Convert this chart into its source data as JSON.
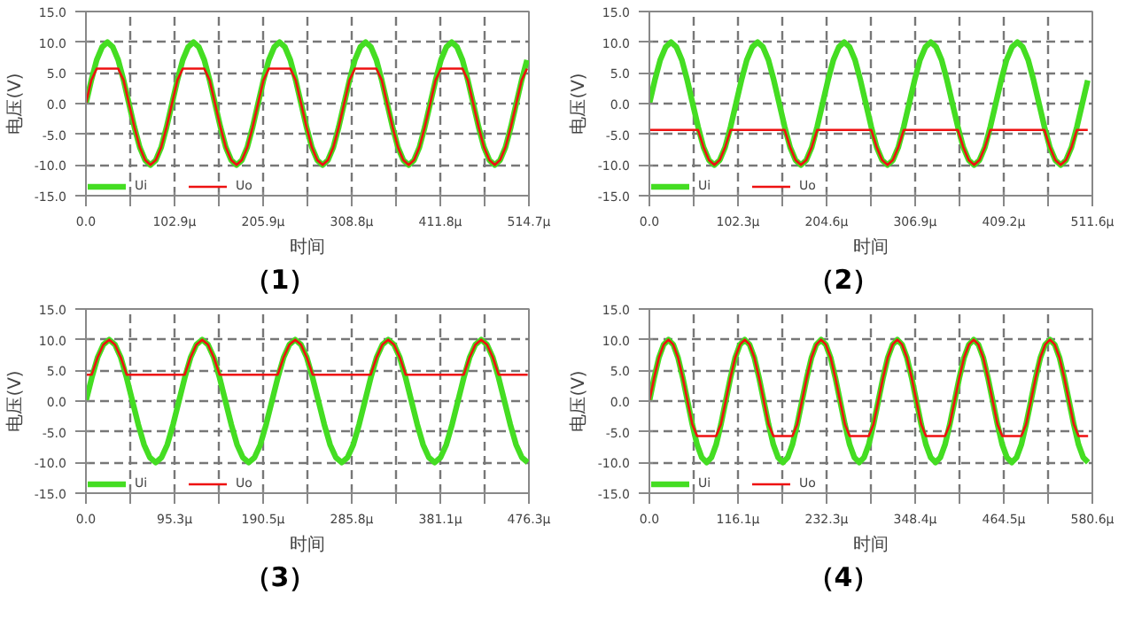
{
  "chart_data": [
    {
      "type": "line",
      "title": "（1）",
      "xlabel": "时间",
      "ylabel": "电压(V)",
      "xlim": [
        0,
        514.7
      ],
      "ylim": [
        -15,
        15
      ],
      "xticks": [
        {
          "value": 0,
          "label": "0.0"
        },
        {
          "value": 51.5,
          "label": null
        },
        {
          "value": 102.9,
          "label": "102.9μ"
        },
        {
          "value": 154.4,
          "label": null
        },
        {
          "value": 205.9,
          "label": "205.9μ"
        },
        {
          "value": 257.3,
          "label": null
        },
        {
          "value": 308.8,
          "label": "308.8μ"
        },
        {
          "value": 360.3,
          "label": null
        },
        {
          "value": 411.8,
          "label": "411.8μ"
        },
        {
          "value": 463.2,
          "label": null
        },
        {
          "value": 514.7,
          "label": "514.7μ"
        }
      ],
      "yticks": [
        {
          "value": -15,
          "label": "-15.0"
        },
        {
          "value": -10,
          "label": "-10.0"
        },
        {
          "value": -5,
          "label": "-5.0"
        },
        {
          "value": 0,
          "label": "0.0"
        },
        {
          "value": 5,
          "label": "5.0"
        },
        {
          "value": 10,
          "label": "10.0"
        },
        {
          "value": 15,
          "label": "15.0"
        }
      ],
      "grid": true,
      "legend": "bottom left",
      "x": [
        0,
        6.25,
        12.5,
        18.75,
        25,
        31.25,
        37.5,
        43.75,
        50,
        56.25,
        62.5,
        68.75,
        75,
        81.25,
        87.5,
        93.75,
        100,
        106.25,
        112.5,
        118.75,
        125,
        131.25,
        137.5,
        143.75,
        150,
        156.25,
        162.5,
        168.75,
        175,
        181.25,
        187.5,
        193.75,
        200,
        206.25,
        212.5,
        218.75,
        225,
        231.25,
        237.5,
        243.75,
        250,
        256.25,
        262.5,
        268.75,
        275,
        281.25,
        287.5,
        293.75,
        300,
        306.25,
        312.5,
        318.75,
        325,
        331.25,
        337.5,
        343.75,
        350,
        356.25,
        362.5,
        368.75,
        375,
        381.25,
        387.5,
        393.75,
        400,
        406.25,
        412.5,
        418.75,
        425,
        431.25,
        437.5,
        443.75,
        450,
        456.25,
        462.5,
        468.75,
        475,
        481.25,
        487.5,
        493.75,
        500,
        506.25,
        512.5
      ],
      "series": [
        {
          "name": "Ui",
          "color": "#44dd22",
          "values": [
            0,
            3.8,
            7.1,
            9.2,
            10,
            9.2,
            7.1,
            3.8,
            0,
            -3.8,
            -7.1,
            -9.2,
            -10,
            -9.2,
            -7.1,
            -3.8,
            0,
            3.8,
            7.1,
            9.2,
            10,
            9.2,
            7.1,
            3.8,
            0,
            -3.8,
            -7.1,
            -9.2,
            -10,
            -9.2,
            -7.1,
            -3.8,
            0,
            3.8,
            7.1,
            9.2,
            10,
            9.2,
            7.1,
            3.8,
            0,
            -3.8,
            -7.1,
            -9.2,
            -10,
            -9.2,
            -7.1,
            -3.8,
            0,
            3.8,
            7.1,
            9.2,
            10,
            9.2,
            7.1,
            3.8,
            0,
            -3.8,
            -7.1,
            -9.2,
            -10,
            -9.2,
            -7.1,
            -3.8,
            0,
            3.8,
            7.1,
            9.2,
            10,
            9.2,
            7.1,
            3.8,
            0,
            -3.8,
            -7.1,
            -9.2,
            -10,
            -9.2,
            -7.1,
            -3.8,
            0,
            3.8,
            7.1
          ]
        },
        {
          "name": "Uo",
          "color": "#ee1111",
          "values": [
            0,
            3.8,
            5.7,
            5.7,
            5.7,
            5.7,
            5.7,
            3.8,
            0,
            -3.8,
            -7.1,
            -9.2,
            -10,
            -9.2,
            -7.1,
            -3.8,
            0,
            3.8,
            5.7,
            5.7,
            5.7,
            5.7,
            5.7,
            3.8,
            0,
            -3.8,
            -7.1,
            -9.2,
            -10,
            -9.2,
            -7.1,
            -3.8,
            0,
            3.8,
            5.7,
            5.7,
            5.7,
            5.7,
            5.7,
            3.8,
            0,
            -3.8,
            -7.1,
            -9.2,
            -10,
            -9.2,
            -7.1,
            -3.8,
            0,
            3.8,
            5.7,
            5.7,
            5.7,
            5.7,
            5.7,
            3.8,
            0,
            -3.8,
            -7.1,
            -9.2,
            -10,
            -9.2,
            -7.1,
            -3.8,
            0,
            3.8,
            5.7,
            5.7,
            5.7,
            5.7,
            5.7,
            3.8,
            0,
            -3.8,
            -7.1,
            -9.2,
            -10,
            -9.2,
            -7.1,
            -3.8,
            0,
            3.8,
            5.7
          ]
        }
      ]
    },
    {
      "type": "line",
      "title": "（2）",
      "xlabel": "时间",
      "ylabel": "电压(V)",
      "xlim": [
        0,
        511.6
      ],
      "ylim": [
        -15,
        15
      ],
      "xticks": [
        {
          "value": 0,
          "label": "0.0"
        },
        {
          "value": 51.2,
          "label": null
        },
        {
          "value": 102.3,
          "label": "102.3μ"
        },
        {
          "value": 153.5,
          "label": null
        },
        {
          "value": 204.6,
          "label": "204.6μ"
        },
        {
          "value": 255.8,
          "label": null
        },
        {
          "value": 306.9,
          "label": "306.9μ"
        },
        {
          "value": 358.1,
          "label": null
        },
        {
          "value": 409.2,
          "label": "409.2μ"
        },
        {
          "value": 460.4,
          "label": null
        },
        {
          "value": 511.6,
          "label": "511.6μ"
        }
      ],
      "yticks": [
        {
          "value": -15,
          "label": "-15.0"
        },
        {
          "value": -10,
          "label": "-10.0"
        },
        {
          "value": -5,
          "label": "-5.0"
        },
        {
          "value": 0,
          "label": "0.0"
        },
        {
          "value": 5,
          "label": "5.0"
        },
        {
          "value": 10,
          "label": "10.0"
        },
        {
          "value": 15,
          "label": "15.0"
        }
      ],
      "grid": true,
      "legend": "bottom left",
      "x": [
        0,
        6.25,
        12.5,
        18.75,
        25,
        31.25,
        37.5,
        43.75,
        50,
        56.25,
        62.5,
        68.75,
        75,
        81.25,
        87.5,
        93.75,
        100,
        106.25,
        112.5,
        118.75,
        125,
        131.25,
        137.5,
        143.75,
        150,
        156.25,
        162.5,
        168.75,
        175,
        181.25,
        187.5,
        193.75,
        200,
        206.25,
        212.5,
        218.75,
        225,
        231.25,
        237.5,
        243.75,
        250,
        256.25,
        262.5,
        268.75,
        275,
        281.25,
        287.5,
        293.75,
        300,
        306.25,
        312.5,
        318.75,
        325,
        331.25,
        337.5,
        343.75,
        350,
        356.25,
        362.5,
        368.75,
        375,
        381.25,
        387.5,
        393.75,
        400,
        406.25,
        412.5,
        418.75,
        425,
        431.25,
        437.5,
        443.75,
        450,
        456.25,
        462.5,
        468.75,
        475,
        481.25,
        487.5,
        493.75,
        500,
        506.25
      ],
      "series": [
        {
          "name": "Ui",
          "color": "#44dd22",
          "values": [
            0,
            3.8,
            7.1,
            9.2,
            10,
            9.2,
            7.1,
            3.8,
            0,
            -3.8,
            -7.1,
            -9.2,
            -10,
            -9.2,
            -7.1,
            -3.8,
            0,
            3.8,
            7.1,
            9.2,
            10,
            9.2,
            7.1,
            3.8,
            0,
            -3.8,
            -7.1,
            -9.2,
            -10,
            -9.2,
            -7.1,
            -3.8,
            0,
            3.8,
            7.1,
            9.2,
            10,
            9.2,
            7.1,
            3.8,
            0,
            -3.8,
            -7.1,
            -9.2,
            -10,
            -9.2,
            -7.1,
            -3.8,
            0,
            3.8,
            7.1,
            9.2,
            10,
            9.2,
            7.1,
            3.8,
            0,
            -3.8,
            -7.1,
            -9.2,
            -10,
            -9.2,
            -7.1,
            -3.8,
            0,
            3.8,
            7.1,
            9.2,
            10,
            9.2,
            7.1,
            3.8,
            0,
            -3.8,
            -7.1,
            -9.2,
            -10,
            -9.2,
            -7.1,
            -3.8,
            0,
            3.8
          ]
        },
        {
          "name": "Uo",
          "color": "#ee1111",
          "values": [
            -4.3,
            -4.3,
            -4.3,
            -4.3,
            -4.3,
            -4.3,
            -4.3,
            -4.3,
            -4.3,
            -4.3,
            -7.1,
            -9.2,
            -10,
            -9.2,
            -7.1,
            -4.3,
            -4.3,
            -4.3,
            -4.3,
            -4.3,
            -4.3,
            -4.3,
            -4.3,
            -4.3,
            -4.3,
            -4.3,
            -7.1,
            -9.2,
            -10,
            -9.2,
            -7.1,
            -4.3,
            -4.3,
            -4.3,
            -4.3,
            -4.3,
            -4.3,
            -4.3,
            -4.3,
            -4.3,
            -4.3,
            -4.3,
            -7.1,
            -9.2,
            -10,
            -9.2,
            -7.1,
            -4.3,
            -4.3,
            -4.3,
            -4.3,
            -4.3,
            -4.3,
            -4.3,
            -4.3,
            -4.3,
            -4.3,
            -4.3,
            -7.1,
            -9.2,
            -10,
            -9.2,
            -7.1,
            -4.3,
            -4.3,
            -4.3,
            -4.3,
            -4.3,
            -4.3,
            -4.3,
            -4.3,
            -4.3,
            -4.3,
            -4.3,
            -7.1,
            -9.2,
            -10,
            -9.2,
            -7.1,
            -4.3,
            -4.3,
            -4.3
          ]
        }
      ]
    },
    {
      "type": "line",
      "title": "（3）",
      "xlabel": "时间",
      "ylabel": "电压(V)",
      "xlim": [
        0,
        476.3
      ],
      "ylim": [
        -15,
        15
      ],
      "xticks": [
        {
          "value": 0,
          "label": "0.0"
        },
        {
          "value": 47.6,
          "label": null
        },
        {
          "value": 95.3,
          "label": "95.3μ"
        },
        {
          "value": 142.9,
          "label": null
        },
        {
          "value": 190.5,
          "label": "190.5μ"
        },
        {
          "value": 238.2,
          "label": null
        },
        {
          "value": 285.8,
          "label": "285.8μ"
        },
        {
          "value": 333.5,
          "label": null
        },
        {
          "value": 381.1,
          "label": "381.1μ"
        },
        {
          "value": 428.7,
          "label": null
        },
        {
          "value": 476.3,
          "label": "476.3μ"
        }
      ],
      "yticks": [
        {
          "value": -15,
          "label": "-15.0"
        },
        {
          "value": -10,
          "label": "-10.0"
        },
        {
          "value": -5,
          "label": "-5.0"
        },
        {
          "value": 0,
          "label": "0.0"
        },
        {
          "value": 5,
          "label": "5.0"
        },
        {
          "value": 10,
          "label": "10.0"
        },
        {
          "value": 15,
          "label": "15.0"
        }
      ],
      "grid": true,
      "legend": "bottom left",
      "x": [
        0,
        6.25,
        12.5,
        18.75,
        25,
        31.25,
        37.5,
        43.75,
        50,
        56.25,
        62.5,
        68.75,
        75,
        81.25,
        87.5,
        93.75,
        100,
        106.25,
        112.5,
        118.75,
        125,
        131.25,
        137.5,
        143.75,
        150,
        156.25,
        162.5,
        168.75,
        175,
        181.25,
        187.5,
        193.75,
        200,
        206.25,
        212.5,
        218.75,
        225,
        231.25,
        237.5,
        243.75,
        250,
        256.25,
        262.5,
        268.75,
        275,
        281.25,
        287.5,
        293.75,
        300,
        306.25,
        312.5,
        318.75,
        325,
        331.25,
        337.5,
        343.75,
        350,
        356.25,
        362.5,
        368.75,
        375,
        381.25,
        387.5,
        393.75,
        400,
        406.25,
        412.5,
        418.75,
        425,
        431.25,
        437.5,
        443.75,
        450,
        456.25,
        462.5,
        468.75,
        475
      ],
      "series": [
        {
          "name": "Ui",
          "color": "#44dd22",
          "values": [
            0,
            3.8,
            7.1,
            9.2,
            10,
            9.2,
            7.1,
            3.8,
            0,
            -3.8,
            -7.1,
            -9.2,
            -10,
            -9.2,
            -7.1,
            -3.8,
            0,
            3.8,
            7.1,
            9.2,
            10,
            9.2,
            7.1,
            3.8,
            0,
            -3.8,
            -7.1,
            -9.2,
            -10,
            -9.2,
            -7.1,
            -3.8,
            0,
            3.8,
            7.1,
            9.2,
            10,
            9.2,
            7.1,
            3.8,
            0,
            -3.8,
            -7.1,
            -9.2,
            -10,
            -9.2,
            -7.1,
            -3.8,
            0,
            3.8,
            7.1,
            9.2,
            10,
            9.2,
            7.1,
            3.8,
            0,
            -3.8,
            -7.1,
            -9.2,
            -10,
            -9.2,
            -7.1,
            -3.8,
            0,
            3.8,
            7.1,
            9.2,
            10,
            9.2,
            7.1,
            3.8,
            0,
            -3.8,
            -7.1,
            -9.2,
            -10
          ]
        },
        {
          "name": "Uo",
          "color": "#ee1111",
          "values": [
            4.3,
            4.3,
            7.1,
            9.2,
            10,
            9.2,
            7.1,
            4.3,
            4.3,
            4.3,
            4.3,
            4.3,
            4.3,
            4.3,
            4.3,
            4.3,
            4.3,
            4.3,
            7.1,
            9.2,
            10,
            9.2,
            7.1,
            4.3,
            4.3,
            4.3,
            4.3,
            4.3,
            4.3,
            4.3,
            4.3,
            4.3,
            4.3,
            4.3,
            7.1,
            9.2,
            10,
            9.2,
            7.1,
            4.3,
            4.3,
            4.3,
            4.3,
            4.3,
            4.3,
            4.3,
            4.3,
            4.3,
            4.3,
            4.3,
            7.1,
            9.2,
            10,
            9.2,
            7.1,
            4.3,
            4.3,
            4.3,
            4.3,
            4.3,
            4.3,
            4.3,
            4.3,
            4.3,
            4.3,
            4.3,
            7.1,
            9.2,
            10,
            9.2,
            7.1,
            4.3,
            4.3,
            4.3,
            4.3,
            4.3,
            4.3
          ]
        }
      ]
    },
    {
      "type": "line",
      "title": "（4）",
      "xlabel": "时间",
      "ylabel": "电压(V)",
      "xlim": [
        0,
        580.6
      ],
      "ylim": [
        -15,
        15
      ],
      "xticks": [
        {
          "value": 0,
          "label": "0.0"
        },
        {
          "value": 58.1,
          "label": null
        },
        {
          "value": 116.1,
          "label": "116.1μ"
        },
        {
          "value": 174.2,
          "label": null
        },
        {
          "value": 232.3,
          "label": "232.3μ"
        },
        {
          "value": 290.3,
          "label": null
        },
        {
          "value": 348.4,
          "label": "348.4μ"
        },
        {
          "value": 406.4,
          "label": null
        },
        {
          "value": 464.5,
          "label": "464.5μ"
        },
        {
          "value": 522.5,
          "label": null
        },
        {
          "value": 580.6,
          "label": "580.6μ"
        }
      ],
      "yticks": [
        {
          "value": -15,
          "label": "-15.0"
        },
        {
          "value": -10,
          "label": "-10.0"
        },
        {
          "value": -5,
          "label": "-5.0"
        },
        {
          "value": 0,
          "label": "0.0"
        },
        {
          "value": 5,
          "label": "5.0"
        },
        {
          "value": 10,
          "label": "10.0"
        },
        {
          "value": 15,
          "label": "15.0"
        }
      ],
      "grid": true,
      "legend": "bottom left",
      "x": [
        0,
        6.25,
        12.5,
        18.75,
        25,
        31.25,
        37.5,
        43.75,
        50,
        56.25,
        62.5,
        68.75,
        75,
        81.25,
        87.5,
        93.75,
        100,
        106.25,
        112.5,
        118.75,
        125,
        131.25,
        137.5,
        143.75,
        150,
        156.25,
        162.5,
        168.75,
        175,
        181.25,
        187.5,
        193.75,
        200,
        206.25,
        212.5,
        218.75,
        225,
        231.25,
        237.5,
        243.75,
        250,
        256.25,
        262.5,
        268.75,
        275,
        281.25,
        287.5,
        293.75,
        300,
        306.25,
        312.5,
        318.75,
        325,
        331.25,
        337.5,
        343.75,
        350,
        356.25,
        362.5,
        368.75,
        375,
        381.25,
        387.5,
        393.75,
        400,
        406.25,
        412.5,
        418.75,
        425,
        431.25,
        437.5,
        443.75,
        450,
        456.25,
        462.5,
        468.75,
        475,
        481.25,
        487.5,
        493.75,
        500,
        506.25,
        512.5,
        518.75,
        525,
        531.25,
        537.5,
        543.75,
        550,
        556.25,
        562.5,
        568.75,
        575
      ],
      "series": [
        {
          "name": "Ui",
          "color": "#44dd22",
          "values": [
            0,
            3.8,
            7.1,
            9.2,
            10,
            9.2,
            7.1,
            3.8,
            0,
            -3.8,
            -7.1,
            -9.2,
            -10,
            -9.2,
            -7.1,
            -3.8,
            0,
            3.8,
            7.1,
            9.2,
            10,
            9.2,
            7.1,
            3.8,
            0,
            -3.8,
            -7.1,
            -9.2,
            -10,
            -9.2,
            -7.1,
            -3.8,
            0,
            3.8,
            7.1,
            9.2,
            10,
            9.2,
            7.1,
            3.8,
            0,
            -3.8,
            -7.1,
            -9.2,
            -10,
            -9.2,
            -7.1,
            -3.8,
            0,
            3.8,
            7.1,
            9.2,
            10,
            9.2,
            7.1,
            3.8,
            0,
            -3.8,
            -7.1,
            -9.2,
            -10,
            -9.2,
            -7.1,
            -3.8,
            0,
            3.8,
            7.1,
            9.2,
            10,
            9.2,
            7.1,
            3.8,
            0,
            -3.8,
            -7.1,
            -9.2,
            -10,
            -9.2,
            -7.1,
            -3.8,
            0,
            3.8,
            7.1,
            9.2,
            10,
            9.2,
            7.1,
            3.8,
            0,
            -3.8,
            -7.1,
            -9.2,
            -10
          ]
        },
        {
          "name": "Uo",
          "color": "#ee1111",
          "values": [
            0,
            3.8,
            7.1,
            9.2,
            10,
            9.2,
            7.1,
            3.8,
            0,
            -3.8,
            -5.7,
            -5.7,
            -5.7,
            -5.7,
            -5.7,
            -3.8,
            0,
            3.8,
            7.1,
            9.2,
            10,
            9.2,
            7.1,
            3.8,
            0,
            -3.8,
            -5.7,
            -5.7,
            -5.7,
            -5.7,
            -5.7,
            -3.8,
            0,
            3.8,
            7.1,
            9.2,
            10,
            9.2,
            7.1,
            3.8,
            0,
            -3.8,
            -5.7,
            -5.7,
            -5.7,
            -5.7,
            -5.7,
            -3.8,
            0,
            3.8,
            7.1,
            9.2,
            10,
            9.2,
            7.1,
            3.8,
            0,
            -3.8,
            -5.7,
            -5.7,
            -5.7,
            -5.7,
            -5.7,
            -3.8,
            0,
            3.8,
            7.1,
            9.2,
            10,
            9.2,
            7.1,
            3.8,
            0,
            -3.8,
            -5.7,
            -5.7,
            -5.7,
            -5.7,
            -5.7,
            -3.8,
            0,
            3.8,
            7.1,
            9.2,
            10,
            9.2,
            7.1,
            3.8,
            0,
            -3.8,
            -5.7,
            -5.7,
            -5.7
          ]
        }
      ]
    }
  ]
}
